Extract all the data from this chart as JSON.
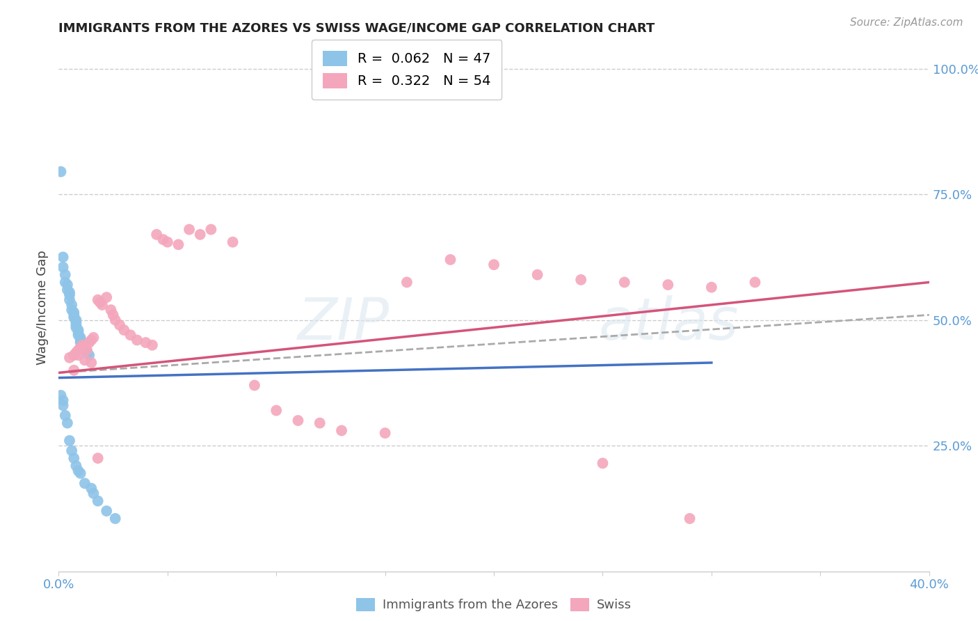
{
  "title": "IMMIGRANTS FROM THE AZORES VS SWISS WAGE/INCOME GAP CORRELATION CHART",
  "source": "Source: ZipAtlas.com",
  "ylabel": "Wage/Income Gap",
  "xlim": [
    0.0,
    0.4
  ],
  "ylim": [
    0.0,
    1.05
  ],
  "color_blue": "#8ec4e8",
  "color_pink": "#f4a6bc",
  "color_axis": "#5b9bd5",
  "color_grid": "#cccccc",
  "background_color": "#ffffff",
  "blue_x": [
    0.001,
    0.002,
    0.002,
    0.003,
    0.003,
    0.004,
    0.004,
    0.005,
    0.005,
    0.005,
    0.006,
    0.006,
    0.007,
    0.007,
    0.007,
    0.008,
    0.008,
    0.008,
    0.008,
    0.009,
    0.009,
    0.009,
    0.01,
    0.01,
    0.01,
    0.011,
    0.011,
    0.012,
    0.013,
    0.014,
    0.001,
    0.002,
    0.002,
    0.003,
    0.004,
    0.005,
    0.006,
    0.007,
    0.008,
    0.009,
    0.01,
    0.012,
    0.015,
    0.016,
    0.018,
    0.022,
    0.026
  ],
  "blue_y": [
    0.795,
    0.625,
    0.605,
    0.59,
    0.575,
    0.57,
    0.56,
    0.555,
    0.55,
    0.54,
    0.53,
    0.52,
    0.515,
    0.51,
    0.505,
    0.5,
    0.495,
    0.49,
    0.485,
    0.48,
    0.475,
    0.47,
    0.465,
    0.46,
    0.455,
    0.45,
    0.445,
    0.44,
    0.435,
    0.43,
    0.35,
    0.34,
    0.33,
    0.31,
    0.295,
    0.26,
    0.24,
    0.225,
    0.21,
    0.2,
    0.195,
    0.175,
    0.165,
    0.155,
    0.14,
    0.12,
    0.105
  ],
  "pink_x": [
    0.005,
    0.007,
    0.008,
    0.009,
    0.01,
    0.011,
    0.012,
    0.013,
    0.014,
    0.015,
    0.016,
    0.018,
    0.019,
    0.02,
    0.022,
    0.024,
    0.025,
    0.026,
    0.028,
    0.03,
    0.033,
    0.036,
    0.04,
    0.043,
    0.045,
    0.048,
    0.05,
    0.055,
    0.06,
    0.065,
    0.07,
    0.08,
    0.09,
    0.1,
    0.11,
    0.12,
    0.13,
    0.15,
    0.16,
    0.18,
    0.2,
    0.22,
    0.24,
    0.26,
    0.28,
    0.3,
    0.32,
    0.007,
    0.009,
    0.012,
    0.015,
    0.018,
    0.25,
    0.29
  ],
  "pink_y": [
    0.425,
    0.43,
    0.435,
    0.44,
    0.445,
    0.45,
    0.445,
    0.44,
    0.455,
    0.46,
    0.465,
    0.54,
    0.535,
    0.53,
    0.545,
    0.52,
    0.51,
    0.5,
    0.49,
    0.48,
    0.47,
    0.46,
    0.455,
    0.45,
    0.67,
    0.66,
    0.655,
    0.65,
    0.68,
    0.67,
    0.68,
    0.655,
    0.37,
    0.32,
    0.3,
    0.295,
    0.28,
    0.275,
    0.575,
    0.62,
    0.61,
    0.59,
    0.58,
    0.575,
    0.57,
    0.565,
    0.575,
    0.4,
    0.43,
    0.42,
    0.415,
    0.225,
    0.215,
    0.105
  ],
  "blue_line_x": [
    0.0,
    0.3
  ],
  "blue_line_y": [
    0.385,
    0.415
  ],
  "dashed_line_x": [
    0.0,
    0.4
  ],
  "dashed_line_y": [
    0.395,
    0.51
  ],
  "pink_line_x": [
    0.0,
    0.4
  ],
  "pink_line_y": [
    0.395,
    0.575
  ]
}
